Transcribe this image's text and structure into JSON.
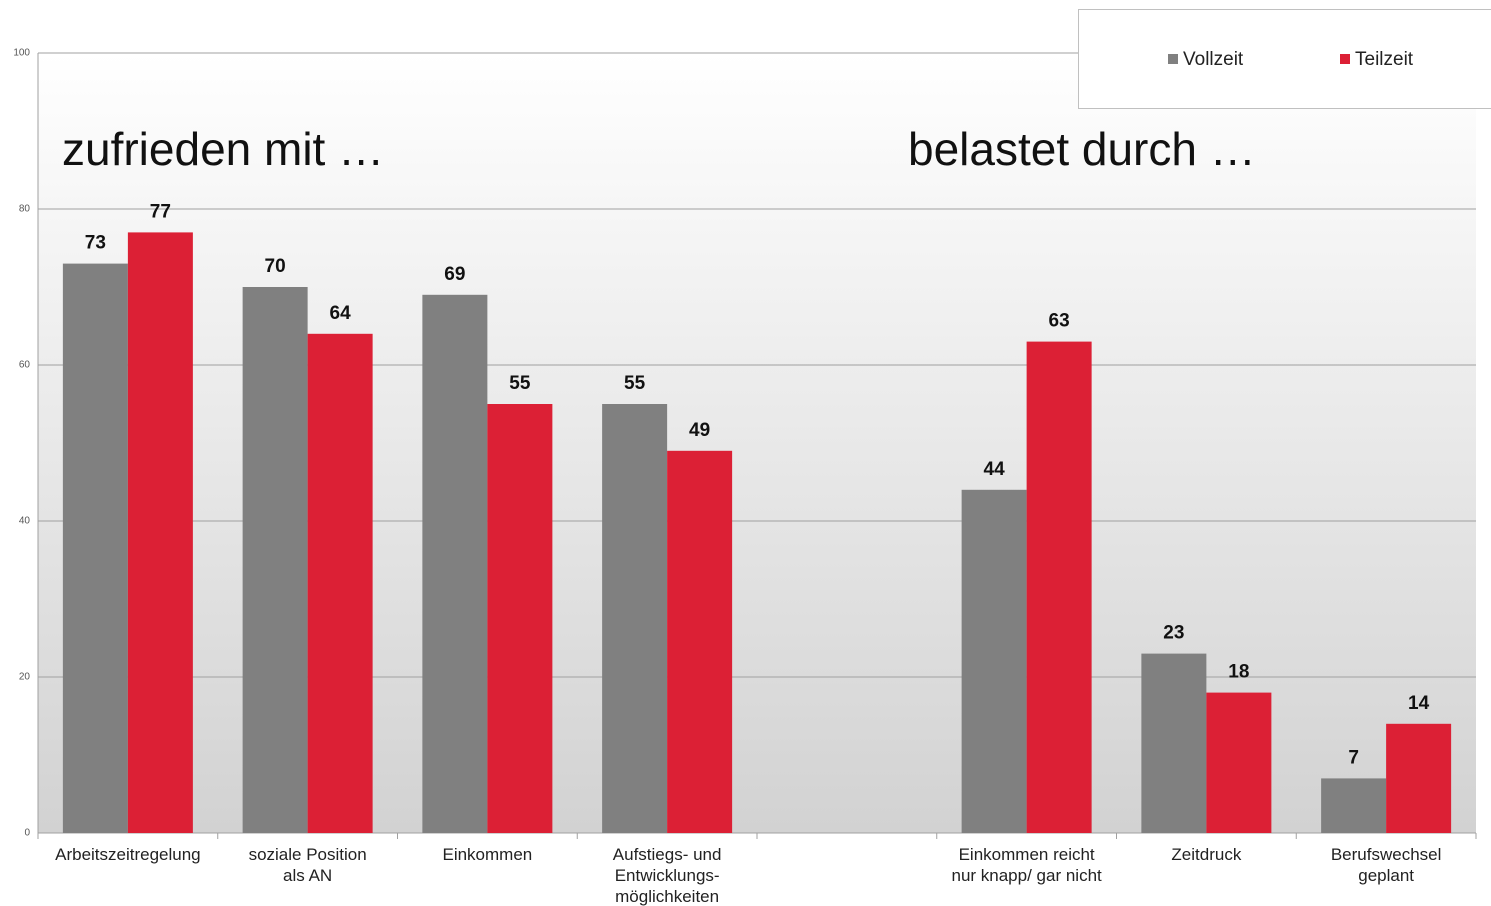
{
  "chart_data": {
    "type": "bar",
    "annotations": [
      "zufrieden mit …",
      "belastet durch …"
    ],
    "categories": [
      "Arbeitszeitregelung",
      "soziale Position\nals AN",
      "Einkommen",
      "Aufstiegs- und\nEntwicklungs-\nmöglichkeiten",
      null,
      "Einkommen reicht\nnur knapp/  gar nicht",
      "Zeitdruck",
      "Berufswechsel\ngeplant"
    ],
    "series": [
      {
        "name": "Vollzeit",
        "color": "#808080",
        "values": [
          73,
          70,
          69,
          55,
          null,
          44,
          23,
          7
        ]
      },
      {
        "name": "Teilzeit",
        "color": "#dc2035",
        "values": [
          77,
          64,
          55,
          49,
          null,
          63,
          18,
          14
        ]
      }
    ],
    "ylim": [
      0,
      100
    ],
    "yticks": [
      0,
      20,
      40,
      60,
      80,
      100
    ],
    "grid": true,
    "legend": "top-right"
  }
}
